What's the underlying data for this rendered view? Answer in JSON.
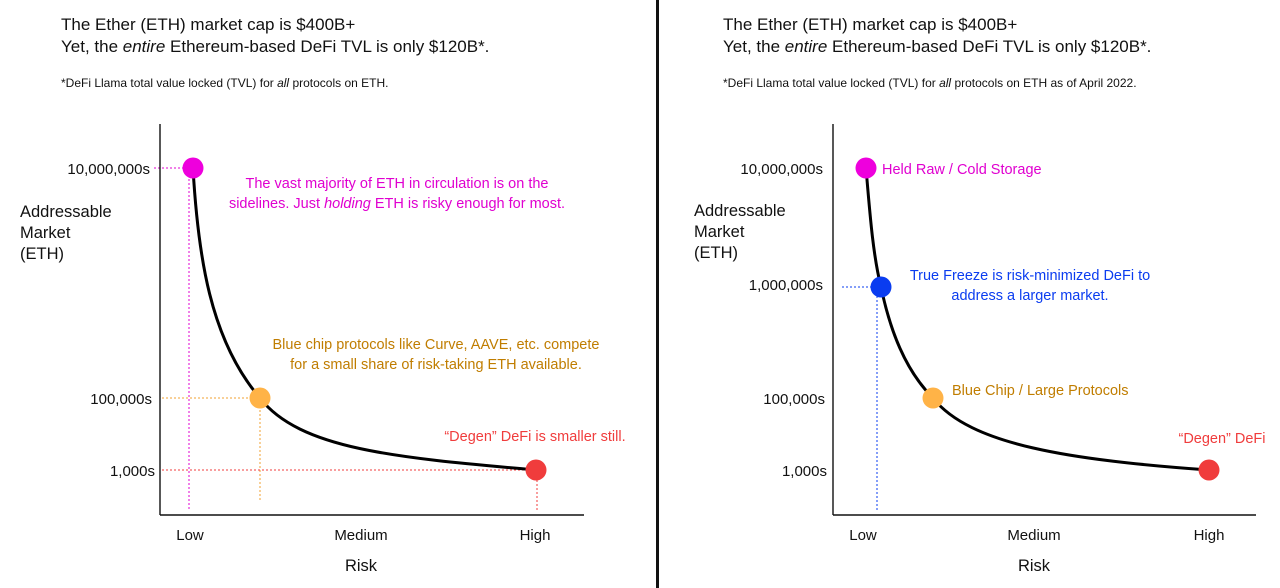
{
  "left": {
    "title_pre": "The Ether (ETH) market cap is $400B+",
    "title_yet": "Yet, the ",
    "title_entire": "entire",
    "title_post": " Ethereum-based DeFi TVL is only $120B*.",
    "footnote_pre": "*DeFi Llama total value locked (TVL) for ",
    "footnote_all": "all",
    "footnote_post": " protocols on ETH.",
    "ylabel_lines": [
      "Addressable",
      "Market",
      "(ETH)"
    ],
    "xlabel": "Risk",
    "ytick_labels": [
      "10,000,000s",
      "100,000s",
      "1,000s"
    ],
    "xtick_labels": [
      "Low",
      "Medium",
      "High"
    ],
    "points": [
      {
        "name": "held",
        "color": "#ee00dd"
      },
      {
        "name": "blue-chip",
        "color": "#ffb347"
      },
      {
        "name": "degen",
        "color": "#f03c3c"
      }
    ],
    "annotations": [
      {
        "name": "annotation-sidelines",
        "color": "#e000d0",
        "lines": [
          "The vast majority of ETH in circulation is on the",
          "sidelines. Just |holding| ETH is risky enough for most."
        ]
      },
      {
        "name": "annotation-blue-chip",
        "color": "#c07d00",
        "lines": [
          "Blue chip protocols like Curve, AAVE, etc. compete",
          "for a small share of risk-taking ETH available."
        ]
      },
      {
        "name": "annotation-degen",
        "color": "#f03c3c",
        "lines": [
          "“Degen” DeFi is smaller still."
        ]
      }
    ]
  },
  "right": {
    "title_pre": "The Ether (ETH) market cap is $400B+",
    "title_yet": "Yet, the ",
    "title_entire": "entire",
    "title_post": " Ethereum-based DeFi TVL is only $120B*.",
    "footnote_pre": "*DeFi Llama total value locked (TVL) for ",
    "footnote_all": "all",
    "footnote_post": " protocols on ETH as of April 2022.",
    "ylabel_lines": [
      "Addressable",
      "Market",
      "(ETH)"
    ],
    "xlabel": "Risk",
    "ytick_labels": [
      "10,000,000s",
      "1,000,000s",
      "100,000s",
      "1,000s"
    ],
    "xtick_labels": [
      "Low",
      "Medium",
      "High"
    ],
    "points": [
      {
        "name": "held",
        "color": "#ee00dd"
      },
      {
        "name": "true-freeze",
        "color": "#0a3cf0"
      },
      {
        "name": "blue-chip",
        "color": "#ffb347"
      },
      {
        "name": "degen",
        "color": "#f03c3c"
      }
    ],
    "annotations": [
      {
        "name": "annotation-held-raw",
        "color": "#e000d0",
        "lines": [
          "Held Raw / Cold Storage"
        ]
      },
      {
        "name": "annotation-true-freeze",
        "color": "#0a3cf0",
        "lines": [
          "True Freeze is risk-minimized DeFi to",
          "address a larger market."
        ]
      },
      {
        "name": "annotation-blue-chip",
        "color": "#c07d00",
        "lines": [
          "Blue Chip / Large Protocols"
        ]
      },
      {
        "name": "annotation-degen",
        "color": "#f03c3c",
        "lines": [
          "“Degen” DeFi"
        ]
      }
    ]
  }
}
